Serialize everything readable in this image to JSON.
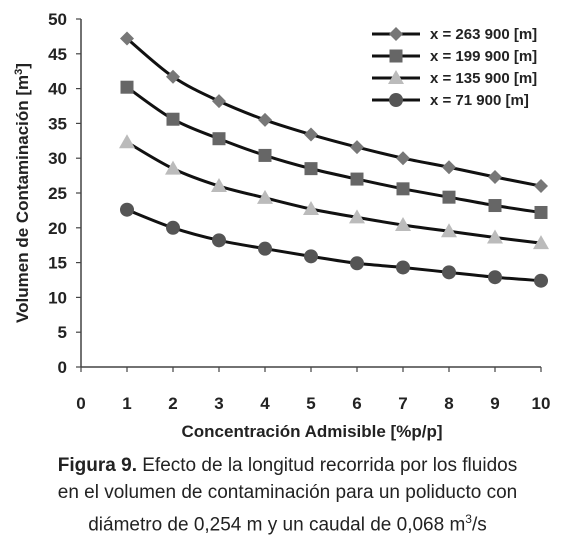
{
  "chart_data": {
    "type": "line",
    "xlabel": "Concentración Admisible [%p/p]",
    "ylabel_main": "Volumen de Contaminación [m",
    "ylabel_sup": "3",
    "ylabel_close": "]",
    "xlim": [
      0,
      10
    ],
    "ylim": [
      0,
      50
    ],
    "xticks": [
      0,
      1,
      2,
      3,
      4,
      5,
      6,
      7,
      8,
      9,
      10
    ],
    "yticks": [
      0,
      5,
      10,
      15,
      20,
      25,
      30,
      35,
      40,
      45,
      50
    ],
    "legend_position": "top-right",
    "grid": false,
    "x": [
      1,
      2,
      3,
      4,
      5,
      6,
      7,
      8,
      9,
      10
    ],
    "series": [
      {
        "name": "x = 263 900  [m]",
        "marker": "diamond",
        "color": "#777777",
        "values": [
          47.2,
          41.7,
          38.2,
          35.5,
          33.4,
          31.6,
          30.0,
          28.7,
          27.3,
          26.0
        ]
      },
      {
        "name": "x = 199 900  [m]",
        "marker": "square",
        "color": "#666666",
        "values": [
          40.2,
          35.6,
          32.8,
          30.4,
          28.5,
          27.0,
          25.6,
          24.4,
          23.2,
          22.2
        ]
      },
      {
        "name": "x = 135 900  [m]",
        "marker": "triangle",
        "color": "#bbbbbb",
        "values": [
          32.3,
          28.5,
          26.0,
          24.3,
          22.7,
          21.5,
          20.4,
          19.5,
          18.6,
          17.8
        ]
      },
      {
        "name": "x = 71 900  [m]",
        "marker": "circle",
        "color": "#555555",
        "values": [
          22.6,
          20.0,
          18.2,
          17.0,
          15.9,
          14.9,
          14.3,
          13.6,
          12.9,
          12.4
        ]
      }
    ]
  },
  "caption": {
    "label": "Figura 9.",
    "line1": " Efecto de la longitud recorrida por los fluidos",
    "line2": "en el volumen de contaminación para un poliducto con",
    "line3_pre": "diámetro de 0,254 m y un caudal de 0,068 m",
    "line3_sup": "3",
    "line3_post": "/s"
  }
}
